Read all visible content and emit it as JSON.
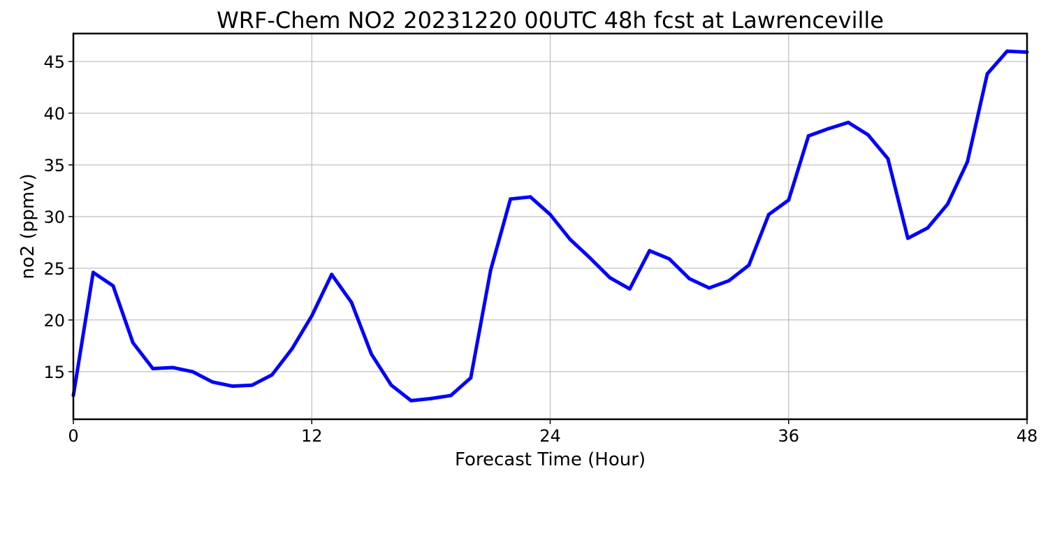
{
  "chart_data": {
    "type": "line",
    "title": "WRF-Chem NO2  20231220 00UTC 48h fcst at Lawrenceville",
    "xlabel": "Forecast Time (Hour)",
    "ylabel": "no2  (ppmv)",
    "xlim": [
      0,
      48
    ],
    "ylim": [
      10.4,
      47.7
    ],
    "xticks": [
      0,
      12,
      24,
      36,
      48
    ],
    "yticks": [
      15,
      20,
      25,
      30,
      35,
      40,
      45
    ],
    "grid": true,
    "series": [
      {
        "color": "#0000ff",
        "x": [
          0,
          1,
          2,
          3,
          4,
          5,
          6,
          7,
          8,
          9,
          10,
          11,
          12,
          13,
          14,
          15,
          16,
          17,
          18,
          19,
          20,
          21,
          22,
          23,
          24,
          25,
          26,
          27,
          28,
          29,
          30,
          31,
          32,
          33,
          34,
          35,
          36,
          37,
          38,
          39,
          40,
          41,
          42,
          43,
          44,
          45,
          46,
          47,
          48
        ],
        "y": [
          12.7,
          24.6,
          23.3,
          17.8,
          15.3,
          15.4,
          15.0,
          14.0,
          13.6,
          13.7,
          14.7,
          17.2,
          20.4,
          24.4,
          21.7,
          16.7,
          13.7,
          12.2,
          12.4,
          12.7,
          14.4,
          24.8,
          31.7,
          31.9,
          30.2,
          27.8,
          26.0,
          24.1,
          23.0,
          26.7,
          25.9,
          24.0,
          23.1,
          23.8,
          25.3,
          30.2,
          31.6,
          37.8,
          38.5,
          39.1,
          37.9,
          35.6,
          27.9,
          28.9,
          31.2,
          35.3,
          43.8,
          46.0,
          45.9
        ]
      }
    ]
  }
}
